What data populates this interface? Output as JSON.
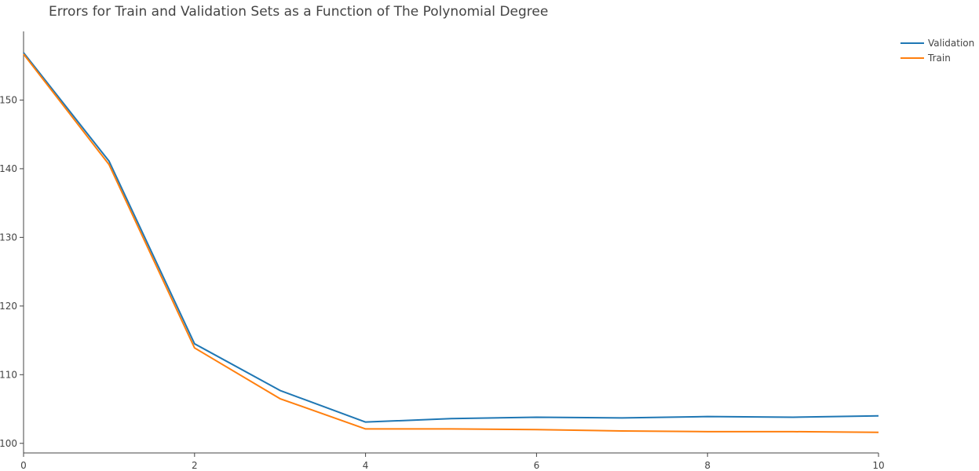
{
  "chart_data": {
    "type": "line",
    "title": "Errors for Train and Validation Sets as a Function of The Polynomial Degree",
    "xlabel": "",
    "ylabel": "",
    "xlim": [
      0,
      10
    ],
    "ylim": [
      98.6,
      160.0
    ],
    "grid": false,
    "legend_position": "top-right",
    "x_ticks": [
      0,
      2,
      4,
      6,
      8,
      10
    ],
    "y_ticks": [
      100,
      110,
      120,
      130,
      140,
      150
    ],
    "x": [
      0,
      1,
      2,
      3,
      4,
      5,
      6,
      7,
      8,
      9,
      10
    ],
    "series": [
      {
        "name": "Validation",
        "color": "#1f77b4",
        "values": [
          156.9,
          141.1,
          114.5,
          107.7,
          103.1,
          103.6,
          103.8,
          103.7,
          103.9,
          103.8,
          104.0
        ]
      },
      {
        "name": "Train",
        "color": "#ff7f0e",
        "values": [
          156.7,
          140.6,
          113.9,
          106.5,
          102.1,
          102.1,
          102.0,
          101.8,
          101.7,
          101.7,
          101.6
        ]
      }
    ]
  }
}
